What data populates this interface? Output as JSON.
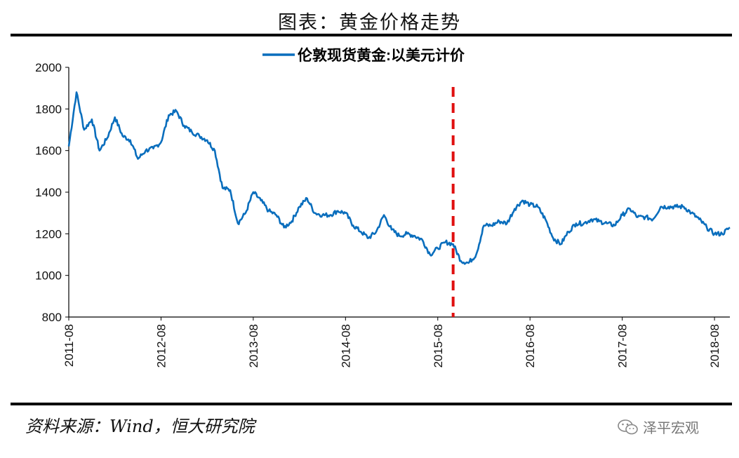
{
  "title": "图表：黄金价格走势",
  "source": "资料来源：Wind，恒大研究院",
  "watermark": {
    "text": "泽平宏观",
    "icon": "wechat-icon"
  },
  "colors": {
    "series": "#0a6ebd",
    "marker_line": "#e01010",
    "axis": "#000000"
  },
  "chart_data": {
    "type": "line",
    "legend_position": "top-center",
    "grid": false,
    "ylim": [
      800,
      2000
    ],
    "yticks": [
      "800",
      "1000",
      "1200",
      "1400",
      "1600",
      "1800",
      "2000"
    ],
    "xticks": [
      "2011-08",
      "2012-08",
      "2013-08",
      "2014-08",
      "2015-08",
      "2016-08",
      "2017-08",
      "2018-08"
    ],
    "x_range": [
      "2011-08",
      "2018-10"
    ],
    "vertical_marker": {
      "x": "2015-10",
      "style": "dashed"
    },
    "series": [
      {
        "name": "伦敦现货黄金:以美元计价",
        "x": [
          "2011-08",
          "2011-09",
          "2011-10",
          "2011-11",
          "2011-12",
          "2012-01",
          "2012-02",
          "2012-03",
          "2012-04",
          "2012-05",
          "2012-06",
          "2012-07",
          "2012-08",
          "2012-09",
          "2012-10",
          "2012-11",
          "2012-12",
          "2013-01",
          "2013-02",
          "2013-03",
          "2013-04",
          "2013-05",
          "2013-06",
          "2013-07",
          "2013-08",
          "2013-09",
          "2013-10",
          "2013-11",
          "2013-12",
          "2014-01",
          "2014-02",
          "2014-03",
          "2014-04",
          "2014-05",
          "2014-06",
          "2014-07",
          "2014-08",
          "2014-09",
          "2014-10",
          "2014-11",
          "2014-12",
          "2015-01",
          "2015-02",
          "2015-03",
          "2015-04",
          "2015-05",
          "2015-06",
          "2015-07",
          "2015-08",
          "2015-09",
          "2015-10",
          "2015-11",
          "2015-12",
          "2016-01",
          "2016-02",
          "2016-03",
          "2016-04",
          "2016-05",
          "2016-06",
          "2016-07",
          "2016-08",
          "2016-09",
          "2016-10",
          "2016-11",
          "2016-12",
          "2017-01",
          "2017-02",
          "2017-03",
          "2017-04",
          "2017-05",
          "2017-06",
          "2017-07",
          "2017-08",
          "2017-09",
          "2017-10",
          "2017-11",
          "2017-12",
          "2018-01",
          "2018-02",
          "2018-03",
          "2018-04",
          "2018-05",
          "2018-06",
          "2018-07",
          "2018-08",
          "2018-09",
          "2018-10"
        ],
        "values": [
          1620,
          1880,
          1700,
          1750,
          1600,
          1660,
          1760,
          1670,
          1650,
          1560,
          1600,
          1610,
          1640,
          1770,
          1790,
          1720,
          1690,
          1670,
          1650,
          1600,
          1420,
          1410,
          1250,
          1300,
          1400,
          1360,
          1310,
          1290,
          1230,
          1260,
          1330,
          1370,
          1300,
          1290,
          1290,
          1310,
          1300,
          1240,
          1210,
          1180,
          1210,
          1290,
          1220,
          1190,
          1200,
          1190,
          1170,
          1100,
          1130,
          1160,
          1150,
          1070,
          1060,
          1100,
          1240,
          1240,
          1260,
          1250,
          1320,
          1360,
          1340,
          1330,
          1270,
          1180,
          1150,
          1210,
          1250,
          1250,
          1270,
          1260,
          1250,
          1240,
          1290,
          1320,
          1280,
          1280,
          1270,
          1330,
          1330,
          1330,
          1330,
          1300,
          1270,
          1230,
          1200,
          1200,
          1230
        ]
      }
    ]
  }
}
